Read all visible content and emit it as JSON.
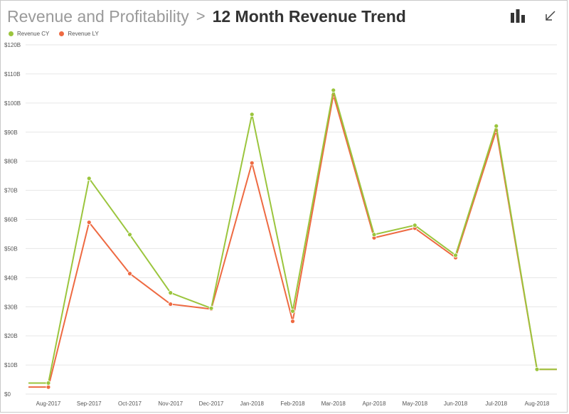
{
  "header": {
    "parent": "Revenue and Profitability",
    "separator": ">",
    "title": "12 Month Revenue Trend"
  },
  "toolbar": {
    "bar_icon": "bar-chart-icon",
    "collapse_icon": "arrow-down-left-icon"
  },
  "colors": {
    "cy": "#9bc53d",
    "ly": "#ee6a42",
    "grid": "#e6e6e6",
    "axis_text": "#555555"
  },
  "chart_data": {
    "type": "line",
    "title": "12 Month Revenue Trend",
    "xlabel": "",
    "ylabel": "",
    "categories": [
      "Aug-2017",
      "Sep-2017",
      "Oct-2017",
      "Nov-2017",
      "Dec-2017",
      "Jan-2018",
      "Feb-2018",
      "Mar-2018",
      "Apr-2018",
      "May-2018",
      "Jun-2018",
      "Jul-2018",
      "Aug-2018"
    ],
    "series": [
      {
        "name": "Revenue CY",
        "color": "#9bc53d",
        "values": [
          3.8,
          74.1,
          54.8,
          34.8,
          29.5,
          96.1,
          28.5,
          104.4,
          54.8,
          58.0,
          47.7,
          92.1,
          8.5
        ]
      },
      {
        "name": "Revenue LY",
        "color": "#ee6a42",
        "values": [
          2.4,
          59.0,
          41.4,
          30.9,
          29.2,
          79.4,
          25.0,
          102.8,
          53.7,
          57.0,
          46.9,
          90.6,
          8.5
        ]
      }
    ],
    "ylim": [
      0,
      120
    ],
    "yticks": [
      0,
      10,
      20,
      30,
      40,
      50,
      60,
      70,
      80,
      90,
      100,
      110,
      120
    ],
    "ytick_labels": [
      "$0",
      "$10B",
      "$20B",
      "$30B",
      "$40B",
      "$50B",
      "$60B",
      "$70B",
      "$80B",
      "$90B",
      "$100B",
      "$110B",
      "$120B"
    ],
    "grid": true,
    "legend": "top-left"
  }
}
